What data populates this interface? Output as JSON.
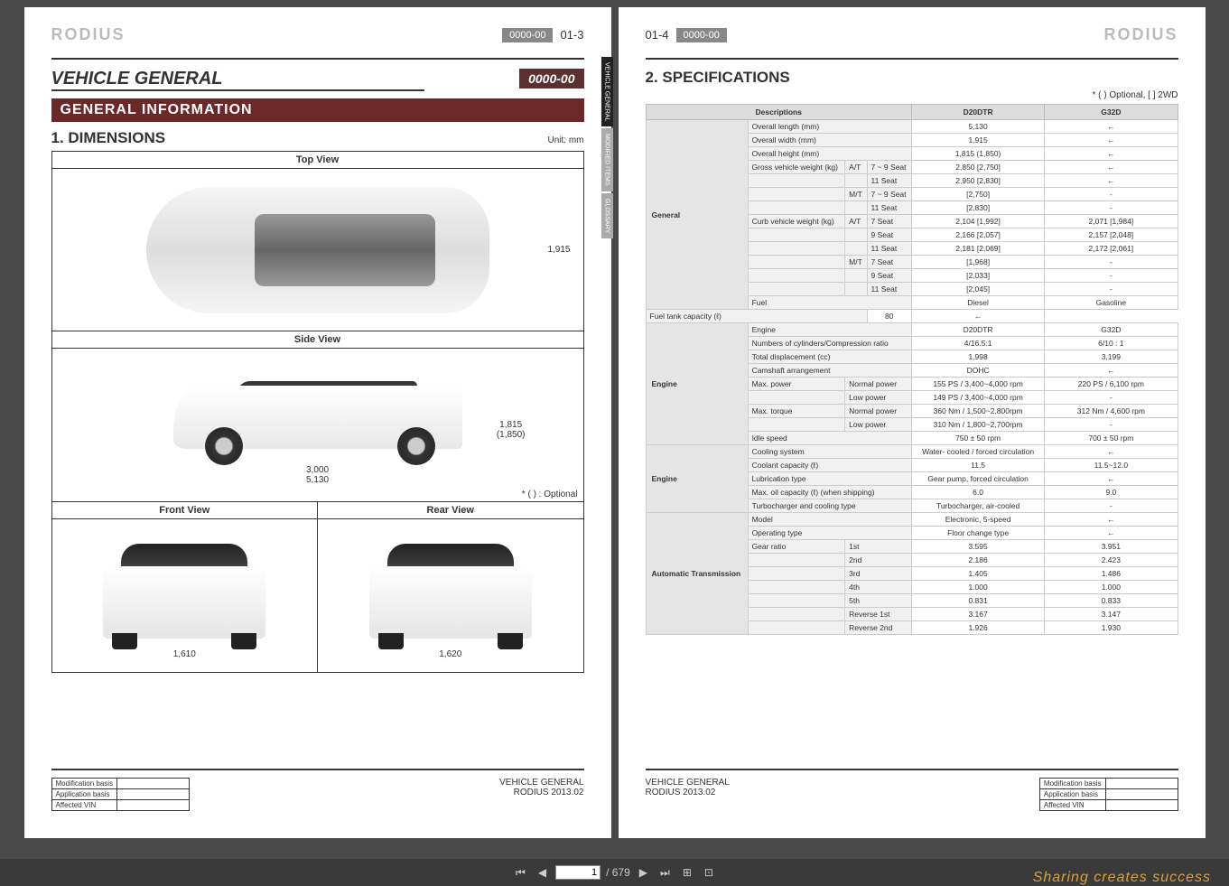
{
  "brand": "RODIUS",
  "toolbar": {
    "page_current": "1",
    "page_total": "679"
  },
  "watermark": "Sharing creates success",
  "left": {
    "page_num": "01-3",
    "code": "0000-00",
    "title": "VEHICLE GENERAL",
    "title_code": "0000-00",
    "section": "GENERAL INFORMATION",
    "heading": "1. DIMENSIONS",
    "unit": "Unit: mm",
    "tabs": [
      "VEHICLE GENERAL",
      "MODIFIED ITEMS",
      "GLOSSARY"
    ],
    "views": {
      "top": "Top View",
      "side": "Side View",
      "front": "Front View",
      "rear": "Rear View"
    },
    "dims": {
      "width_top": "1,915",
      "height_side": "1,815\n(1,850)",
      "wheelbase": "3,000",
      "length": "5,130",
      "track_front": "1,610",
      "track_rear": "1,620"
    },
    "optional_note": "* (  ) : Optional",
    "footer": {
      "mod_rows": [
        "Modification basis",
        "Application basis",
        "Affected VIN"
      ],
      "doc": "VEHICLE GENERAL",
      "ver": "RODIUS 2013.02"
    }
  },
  "right": {
    "page_num": "01-4",
    "code": "0000-00",
    "heading": "2. SPECIFICATIONS",
    "legend": "* ( ) Optional, [ ] 2WD",
    "headers": [
      "Descriptions",
      "D20DTR",
      "G32D"
    ],
    "rows": [
      {
        "cat": "General",
        "span": 14,
        "sub": [
          "Overall length (mm)"
        ],
        "v": [
          "5,130",
          "←"
        ]
      },
      {
        "sub": [
          "Overall width (mm)"
        ],
        "v": [
          "1,915",
          "←"
        ]
      },
      {
        "sub": [
          "Overall height (mm)"
        ],
        "v": [
          "1,815 (1,850)",
          "←"
        ]
      },
      {
        "sub": [
          "Gross vehicle weight (kg)",
          "A/T",
          "7 ~ 9 Seat"
        ],
        "v": [
          "2,850 [2,750]",
          "←"
        ]
      },
      {
        "sub": [
          "",
          "",
          "11 Seat"
        ],
        "v": [
          "2,950 [2,830]",
          "←"
        ]
      },
      {
        "sub": [
          "",
          "M/T",
          "7 ~ 9 Seat"
        ],
        "v": [
          "[2,750]",
          "-"
        ]
      },
      {
        "sub": [
          "",
          "",
          "11 Seat"
        ],
        "v": [
          "[2,830]",
          "-"
        ]
      },
      {
        "sub": [
          "Curb vehicle weight (kg)",
          "A/T",
          "7 Seat"
        ],
        "v": [
          "2,104 [1,992]",
          "2,071 [1,984]"
        ]
      },
      {
        "sub": [
          "",
          "",
          "9 Seat"
        ],
        "v": [
          "2,166 [2,057]",
          "2,157 [2,048]"
        ]
      },
      {
        "sub": [
          "",
          "",
          "11 Seat"
        ],
        "v": [
          "2,181 [2,069]",
          "2,172 [2,061]"
        ]
      },
      {
        "sub": [
          "",
          "M/T",
          "7 Seat"
        ],
        "v": [
          "[1,968]",
          "-"
        ]
      },
      {
        "sub": [
          "",
          "",
          "9 Seat"
        ],
        "v": [
          "[2,033]",
          "-"
        ]
      },
      {
        "sub": [
          "",
          "",
          "11 Seat"
        ],
        "v": [
          "[2,045]",
          "-"
        ]
      },
      {
        "sub": [
          "Fuel"
        ],
        "v": [
          "Diesel",
          "Gasoline"
        ]
      },
      {
        "sub": [
          "Fuel tank capacity (ℓ)"
        ],
        "v": [
          "80",
          "←"
        ]
      },
      {
        "cat": "Engine",
        "span": 9,
        "sub": [
          "Engine"
        ],
        "v": [
          "D20DTR",
          "G32D"
        ]
      },
      {
        "sub": [
          "Numbers of cylinders/Compression ratio"
        ],
        "v": [
          "4/16.5:1",
          "6/10 : 1"
        ]
      },
      {
        "sub": [
          "Total displacement (cc)"
        ],
        "v": [
          "1,998",
          "3,199"
        ]
      },
      {
        "sub": [
          "Camshaft arrangement"
        ],
        "v": [
          "DOHC",
          "←"
        ]
      },
      {
        "sub": [
          "Max. power",
          "Normal power"
        ],
        "v": [
          "155 PS / 3,400~4,000 rpm",
          "220 PS / 6,100 rpm"
        ]
      },
      {
        "sub": [
          "",
          "Low power"
        ],
        "v": [
          "149 PS / 3,400~4,000 rpm",
          "-"
        ]
      },
      {
        "sub": [
          "Max. torque",
          "Normal power"
        ],
        "v": [
          "360 Nm / 1,500~2,800rpm",
          "312 Nm / 4,600 rpm"
        ]
      },
      {
        "sub": [
          "",
          "Low power"
        ],
        "v": [
          "310 Nm / 1,800~2,700rpm",
          "-"
        ]
      },
      {
        "sub": [
          "Idle speed"
        ],
        "v": [
          "750 ± 50 rpm",
          "700 ± 50 rpm"
        ]
      },
      {
        "cat": "Engine",
        "span": 5,
        "sub": [
          "Cooling system"
        ],
        "v": [
          "Water- cooled / forced circulation",
          "←"
        ]
      },
      {
        "sub": [
          "Coolant capacity (ℓ)"
        ],
        "v": [
          "11.5",
          "11.5~12.0"
        ]
      },
      {
        "sub": [
          "Lubrication type"
        ],
        "v": [
          "Gear pump, forced circulation",
          "←"
        ]
      },
      {
        "sub": [
          "Max. oil capacity (ℓ) (when shipping)"
        ],
        "v": [
          "6.0",
          "9.0"
        ]
      },
      {
        "sub": [
          "Turbocharger and cooling type"
        ],
        "v": [
          "Turbocharger, air-cooled",
          "-"
        ]
      },
      {
        "cat": "Automatic Transmission",
        "span": 9,
        "sub": [
          "Model"
        ],
        "v": [
          "Electronic, 5-speed",
          "←"
        ]
      },
      {
        "sub": [
          "Operating type"
        ],
        "v": [
          "Floor change type",
          "←"
        ]
      },
      {
        "sub": [
          "Gear ratio",
          "1st"
        ],
        "v": [
          "3.595",
          "3.951"
        ]
      },
      {
        "sub": [
          "",
          "2nd"
        ],
        "v": [
          "2.186",
          "2.423"
        ]
      },
      {
        "sub": [
          "",
          "3rd"
        ],
        "v": [
          "1.405",
          "1.486"
        ]
      },
      {
        "sub": [
          "",
          "4th"
        ],
        "v": [
          "1.000",
          "1.000"
        ]
      },
      {
        "sub": [
          "",
          "5th"
        ],
        "v": [
          "0.831",
          "0.833"
        ]
      },
      {
        "sub": [
          "",
          "Reverse 1st"
        ],
        "v": [
          "3.167",
          "3.147"
        ]
      },
      {
        "sub": [
          "",
          "Reverse 2nd"
        ],
        "v": [
          "1.926",
          "1.930"
        ]
      }
    ],
    "footer": {
      "mod_rows": [
        "Modification basis",
        "Application basis",
        "Affected VIN"
      ],
      "doc": "VEHICLE GENERAL",
      "ver": "RODIUS 2013.02"
    }
  }
}
